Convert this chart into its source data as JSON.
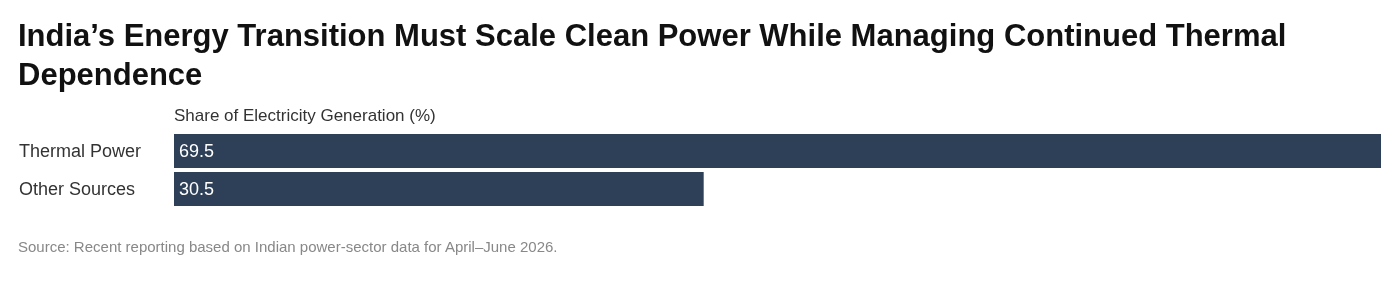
{
  "chart_data": {
    "type": "bar",
    "orientation": "horizontal",
    "title": "India’s Energy Transition Must Scale Clean Power While Managing Continued Thermal Dependence",
    "xlabel": "Share of Electricity Generation (%)",
    "categories": [
      "Thermal Power",
      "Other Sources"
    ],
    "values": [
      69.5,
      30.5
    ],
    "color": "#2e4057",
    "data_labels": true,
    "annotations": [
      "Source: Recent reporting based on Indian power-sector data for April–June 2026."
    ]
  }
}
